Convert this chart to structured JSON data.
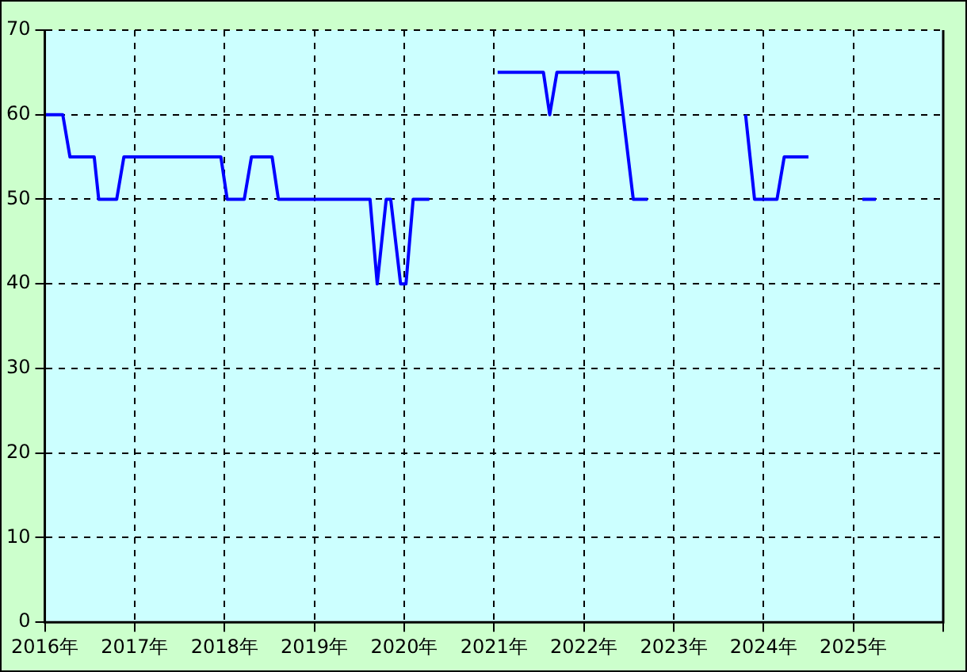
{
  "chart_data": {
    "type": "line",
    "x": [
      2016.0,
      2016.2,
      2016.28,
      2016.55,
      2016.6,
      2016.8,
      2016.88,
      2017.96,
      2018.03,
      2018.22,
      2018.3,
      2018.53,
      2018.6,
      2019.62,
      2019.7,
      2019.8,
      2019.85,
      2019.96,
      2020.02,
      2020.1,
      2020.28,
      2020.6,
      2021.04,
      2021.55,
      2021.62,
      2021.7,
      2022.38,
      2022.55,
      2022.71,
      2023.2,
      2023.8,
      2023.9,
      2024.15,
      2024.23,
      2024.5,
      2024.8,
      2025.1,
      2025.25
    ],
    "series": [
      {
        "color": "#0000ff",
        "values": [
          60,
          60,
          55,
          55,
          50,
          50,
          55,
          55,
          50,
          50,
          55,
          55,
          50,
          50,
          40,
          50,
          50,
          40,
          40,
          50,
          50,
          null,
          65,
          65,
          60,
          65,
          65,
          50,
          50,
          null,
          60,
          50,
          50,
          55,
          55,
          null,
          50,
          50
        ]
      }
    ],
    "xlim": [
      2016,
      2026
    ],
    "xticks": [
      {
        "value": 2016,
        "label": "2016年"
      },
      {
        "value": 2017,
        "label": "2017年"
      },
      {
        "value": 2018,
        "label": "2018年"
      },
      {
        "value": 2019,
        "label": "2019年"
      },
      {
        "value": 2020,
        "label": "2020年"
      },
      {
        "value": 2021,
        "label": "2021年"
      },
      {
        "value": 2022,
        "label": "2022年"
      },
      {
        "value": 2023,
        "label": "2023年"
      },
      {
        "value": 2024,
        "label": "2024年"
      },
      {
        "value": 2025,
        "label": "2025年"
      },
      {
        "value": 2026,
        "label": null
      }
    ],
    "ylim": [
      0,
      70
    ],
    "yticks": [
      0,
      10,
      20,
      30,
      40,
      50,
      60,
      70
    ],
    "grid": true,
    "marker": "none",
    "line_style": "solid",
    "legend": false
  }
}
